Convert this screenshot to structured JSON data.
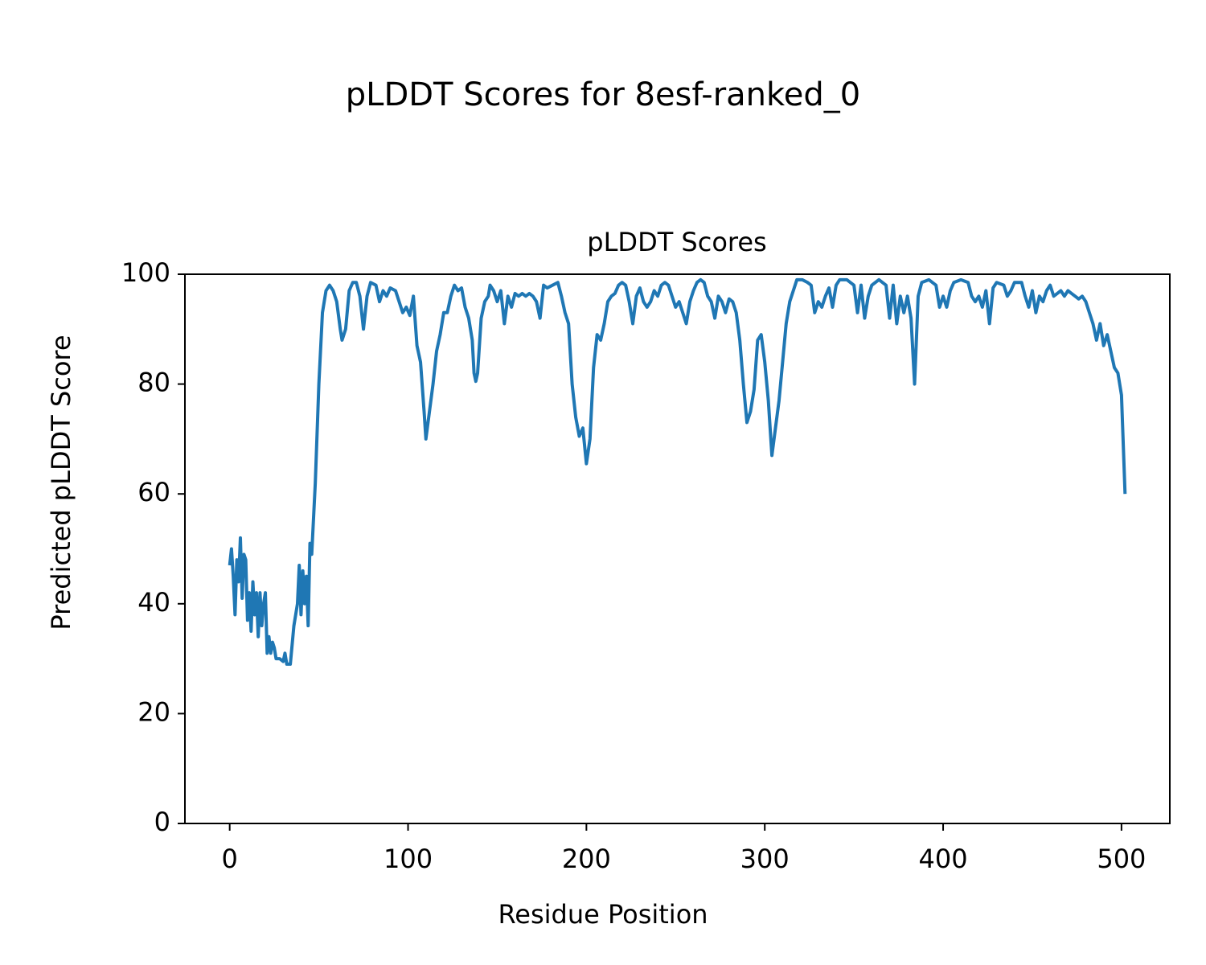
{
  "chart_data": {
    "type": "line",
    "suptitle": "pLDDT Scores for 8esf-ranked_0",
    "title": "pLDDT Scores",
    "xlabel": "Residue Position",
    "ylabel": "Predicted pLDDT Score",
    "xlim": [
      -25.1,
      527.1
    ],
    "xticks": [
      0,
      100,
      200,
      300,
      400,
      500
    ],
    "ylim": [
      0,
      100
    ],
    "yticks": [
      0,
      20,
      40,
      60,
      80,
      100
    ],
    "grid": false,
    "series": [
      {
        "color": "#1f77b4",
        "x": [
          0,
          1,
          2,
          3,
          4,
          5,
          6,
          7,
          8,
          9,
          10,
          11,
          12,
          13,
          14,
          15,
          16,
          17,
          18,
          19,
          20,
          21,
          22,
          23,
          24,
          25,
          26,
          28,
          30,
          31,
          32,
          34,
          36,
          38,
          39,
          40,
          41,
          42,
          43,
          44,
          45,
          46,
          48,
          50,
          52,
          54,
          56,
          58,
          60,
          62,
          63,
          65,
          67,
          69,
          71,
          73,
          75,
          77,
          79,
          82,
          84,
          86,
          88,
          90,
          93,
          95,
          97,
          99,
          101,
          103,
          105,
          107,
          109,
          110,
          112,
          114,
          116,
          118,
          120,
          122,
          124,
          126,
          128,
          130,
          132,
          134,
          136,
          137,
          138,
          139,
          141,
          143,
          145,
          146,
          148,
          150,
          152,
          154,
          156,
          158,
          160,
          162,
          164,
          166,
          168,
          170,
          172,
          174,
          176,
          178,
          181,
          184,
          186,
          188,
          190,
          192,
          194,
          196,
          198,
          200,
          202,
          204,
          206,
          208,
          210,
          212,
          214,
          216,
          218,
          220,
          222,
          224,
          226,
          228,
          230,
          232,
          234,
          236,
          238,
          240,
          242,
          244,
          246,
          248,
          250,
          252,
          254,
          256,
          258,
          260,
          262,
          264,
          266,
          268,
          270,
          272,
          274,
          276,
          278,
          280,
          282,
          284,
          286,
          288,
          290,
          292,
          294,
          296,
          298,
          300,
          302,
          304,
          306,
          308,
          310,
          312,
          314,
          316,
          318,
          321,
          324,
          326,
          328,
          330,
          332,
          334,
          336,
          338,
          340,
          342,
          346,
          350,
          352,
          354,
          356,
          358,
          360,
          362,
          364,
          368,
          370,
          372,
          374,
          376,
          378,
          380,
          382,
          384,
          386,
          388,
          392,
          396,
          398,
          400,
          402,
          404,
          406,
          410,
          414,
          416,
          418,
          420,
          422,
          424,
          426,
          428,
          430,
          434,
          436,
          438,
          440,
          444,
          446,
          448,
          450,
          452,
          454,
          456,
          458,
          460,
          462,
          464,
          466,
          468,
          470,
          472,
          474,
          476,
          478,
          480,
          482,
          484,
          486,
          488,
          490,
          492,
          494,
          496,
          498,
          500,
          502
        ],
        "values": [
          47,
          50,
          45,
          38,
          48,
          44,
          52,
          41,
          49,
          48,
          37,
          42,
          35,
          44,
          38,
          42,
          34,
          42,
          36,
          40,
          42,
          31,
          34,
          31,
          33,
          32,
          30,
          30,
          29.5,
          31,
          29,
          29,
          36,
          40,
          47,
          38,
          46,
          40,
          45,
          36,
          51,
          49,
          62,
          80,
          93,
          97,
          98,
          97,
          95,
          90,
          88,
          90,
          97,
          98.5,
          98.5,
          96,
          90,
          96,
          98.5,
          98,
          95,
          97,
          96,
          97.5,
          97,
          95,
          93,
          94,
          92.5,
          96,
          87,
          84,
          75,
          70,
          75,
          80,
          86,
          89,
          93,
          93,
          96,
          98,
          97,
          97.5,
          94,
          92,
          88,
          82,
          80.5,
          82,
          92,
          95,
          96,
          98,
          97,
          95,
          97,
          91,
          96,
          94,
          96.5,
          96,
          96.5,
          96,
          96.5,
          96,
          95,
          92,
          98,
          97.5,
          98,
          98.5,
          96,
          93,
          91,
          80,
          74,
          70.5,
          72,
          65.5,
          70,
          83,
          89,
          88,
          91,
          95,
          96,
          96.5,
          98,
          98.5,
          98,
          95,
          91,
          96,
          97.5,
          95,
          94,
          95,
          97,
          96,
          98,
          98.5,
          98,
          96,
          94,
          95,
          93,
          91,
          95,
          97,
          98.5,
          99,
          98.5,
          96,
          95,
          92,
          96,
          95,
          93,
          95.5,
          95,
          93,
          88,
          80,
          73,
          75,
          79,
          88,
          89,
          84,
          77,
          67,
          72,
          77,
          84,
          91,
          95,
          97,
          99,
          99,
          98.5,
          98,
          93,
          95,
          94,
          96,
          97.5,
          94,
          98,
          99,
          99,
          98,
          93,
          98,
          92,
          96,
          98,
          98.5,
          99,
          98,
          92,
          98,
          91,
          96,
          93,
          96,
          92,
          80,
          96,
          98.5,
          99,
          98,
          94,
          96,
          94,
          97,
          98.5,
          99,
          98.5,
          96,
          95,
          96,
          94,
          97,
          91,
          97.5,
          98.5,
          98,
          96,
          97,
          98.5,
          98.5,
          96,
          94,
          97,
          93,
          96,
          95,
          97,
          98,
          96,
          96.5,
          97,
          96,
          97,
          96.5,
          96,
          95.5,
          96,
          95,
          93,
          91,
          88,
          91,
          87,
          89,
          86,
          83,
          82,
          78,
          60
        ]
      }
    ]
  }
}
